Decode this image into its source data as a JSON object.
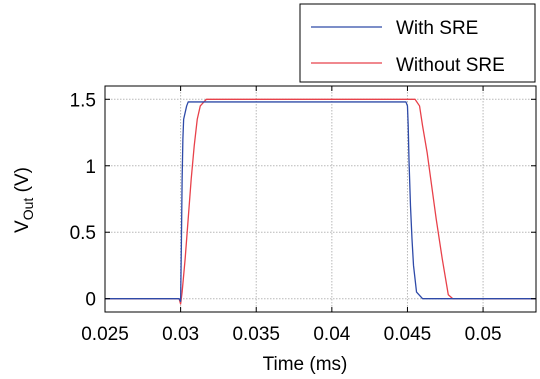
{
  "chart_data": {
    "type": "line",
    "xlabel": "Time (ms)",
    "ylabel": {
      "main": "V",
      "sub": "Out",
      "unit": " (V)"
    },
    "xlim": [
      0.025,
      0.0535
    ],
    "ylim": [
      -0.1,
      1.6
    ],
    "xticks": [
      0.025,
      0.03,
      0.035,
      0.04,
      0.045,
      0.05
    ],
    "xtick_labels": [
      "0.025",
      "0.03",
      "0.035",
      "0.04",
      "0.045",
      "0.05"
    ],
    "yticks": [
      0,
      0.5,
      1,
      1.5
    ],
    "ytick_labels": [
      "0",
      "0.5",
      "1",
      "1.5"
    ],
    "grid": true,
    "legend_position": "top-right",
    "series": [
      {
        "name": "With SRE",
        "color": "#2e4aa8",
        "x": [
          0.025,
          0.0299,
          0.03,
          0.03005,
          0.0301,
          0.03015,
          0.0302,
          0.0304,
          0.0305,
          0.031,
          0.035,
          0.04,
          0.0449,
          0.045,
          0.04505,
          0.0451,
          0.0452,
          0.0453,
          0.0454,
          0.0456,
          0.046,
          0.05,
          0.0535
        ],
        "y": [
          0,
          0,
          -0.02,
          0.4,
          0.9,
          1.2,
          1.35,
          1.45,
          1.48,
          1.48,
          1.48,
          1.48,
          1.48,
          1.45,
          1.3,
          1.05,
          0.7,
          0.45,
          0.25,
          0.05,
          0,
          0,
          0
        ]
      },
      {
        "name": "Without SRE",
        "color": "#e8414a",
        "x": [
          0.025,
          0.0299,
          0.03,
          0.0301,
          0.0303,
          0.0305,
          0.0307,
          0.0309,
          0.0311,
          0.0313,
          0.0317,
          0.035,
          0.04,
          0.0455,
          0.0458,
          0.046,
          0.0463,
          0.0466,
          0.0469,
          0.0473,
          0.0477,
          0.048,
          0.05,
          0.0535
        ],
        "y": [
          0,
          0,
          -0.04,
          0.05,
          0.3,
          0.6,
          0.9,
          1.15,
          1.35,
          1.45,
          1.5,
          1.5,
          1.5,
          1.5,
          1.45,
          1.3,
          1.1,
          0.85,
          0.6,
          0.3,
          0.03,
          0,
          0,
          0
        ]
      }
    ]
  }
}
